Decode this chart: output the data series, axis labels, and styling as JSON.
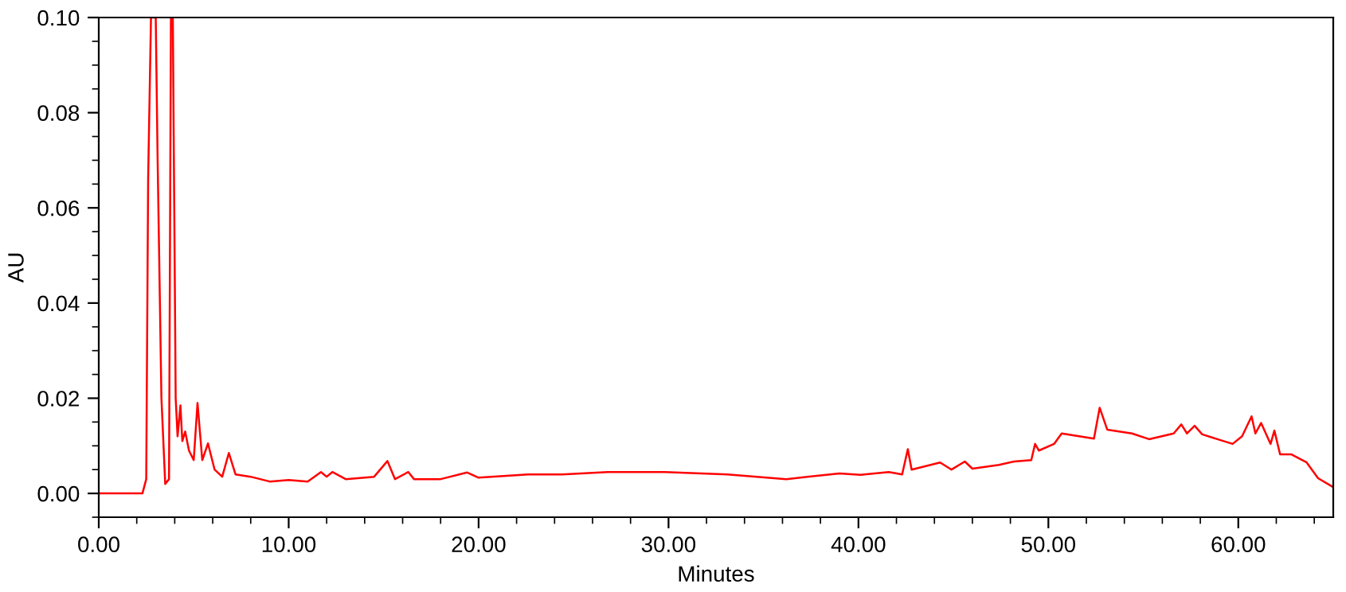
{
  "chart_data": {
    "type": "line",
    "xlabel": "Minutes",
    "ylabel": "AU",
    "xlim": [
      0,
      65
    ],
    "ylim": [
      -0.005,
      0.1
    ],
    "xticks": [
      {
        "value": 0,
        "label": "0.00"
      },
      {
        "value": 10,
        "label": "10.00"
      },
      {
        "value": 20,
        "label": "20.00"
      },
      {
        "value": 30,
        "label": "30.00"
      },
      {
        "value": 40,
        "label": "40.00"
      },
      {
        "value": 50,
        "label": "50.00"
      },
      {
        "value": 60,
        "label": "60.00"
      }
    ],
    "yticks": [
      {
        "value": 0,
        "label": "0.00"
      },
      {
        "value": 0.02,
        "label": "0.02"
      },
      {
        "value": 0.04,
        "label": "0.04"
      },
      {
        "value": 0.06,
        "label": "0.06"
      },
      {
        "value": 0.08,
        "label": "0.08"
      },
      {
        "value": 0.1,
        "label": "0.10"
      }
    ],
    "grid": false,
    "marker": "none",
    "line_style": "solid",
    "series": [
      {
        "color": "#ff0000",
        "x": [
          0,
          2.3,
          2.5,
          2.6,
          2.75,
          3.0,
          3.1,
          3.3,
          3.5,
          3.7,
          3.8,
          3.9,
          4.05,
          4.15,
          4.3,
          4.4,
          4.55,
          4.75,
          5.0,
          5.2,
          5.45,
          5.75,
          6.1,
          6.5,
          6.85,
          7.2,
          8,
          9,
          10,
          11,
          11.7,
          12,
          12.3,
          13,
          14.5,
          15.2,
          15.6,
          16.3,
          16.6,
          18,
          19.4,
          20,
          22.6,
          24.4,
          26.8,
          29.8,
          33.1,
          36.2,
          39,
          40.1,
          41.6,
          42.3,
          42.6,
          42.8,
          44.3,
          44.9,
          45.6,
          46.0,
          47.4,
          48.2,
          49.1,
          49.3,
          49.5,
          50.3,
          50.7,
          52.4,
          52.7,
          53.1,
          54.4,
          55.3,
          56.6,
          57.0,
          57.3,
          57.7,
          58.1,
          59.7,
          60.2,
          60.7,
          60.9,
          61.2,
          61.7,
          61.9,
          62.2,
          62.8,
          63.6,
          64.2,
          65.0
        ],
        "values": [
          0,
          0,
          0.003,
          0.066,
          0.1,
          0.1,
          0.07,
          0.02,
          0.002,
          0.003,
          0.1,
          0.1,
          0.02,
          0.012,
          0.0185,
          0.011,
          0.013,
          0.009,
          0.007,
          0.019,
          0.007,
          0.0105,
          0.005,
          0.0035,
          0.0085,
          0.004,
          0.0035,
          0.0025,
          0.0028,
          0.0025,
          0.0045,
          0.0035,
          0.0045,
          0.003,
          0.0035,
          0.0068,
          0.003,
          0.0045,
          0.003,
          0.003,
          0.0044,
          0.0033,
          0.004,
          0.004,
          0.0045,
          0.0045,
          0.004,
          0.003,
          0.0042,
          0.0039,
          0.0045,
          0.004,
          0.0093,
          0.005,
          0.0065,
          0.005,
          0.0067,
          0.0052,
          0.006,
          0.0067,
          0.007,
          0.0104,
          0.009,
          0.0104,
          0.0126,
          0.0115,
          0.018,
          0.0134,
          0.0126,
          0.0114,
          0.0126,
          0.0145,
          0.0126,
          0.0142,
          0.0124,
          0.0104,
          0.012,
          0.0162,
          0.0126,
          0.0148,
          0.0104,
          0.0132,
          0.0082,
          0.0082,
          0.0065,
          0.0032,
          0.0013
        ]
      }
    ]
  }
}
